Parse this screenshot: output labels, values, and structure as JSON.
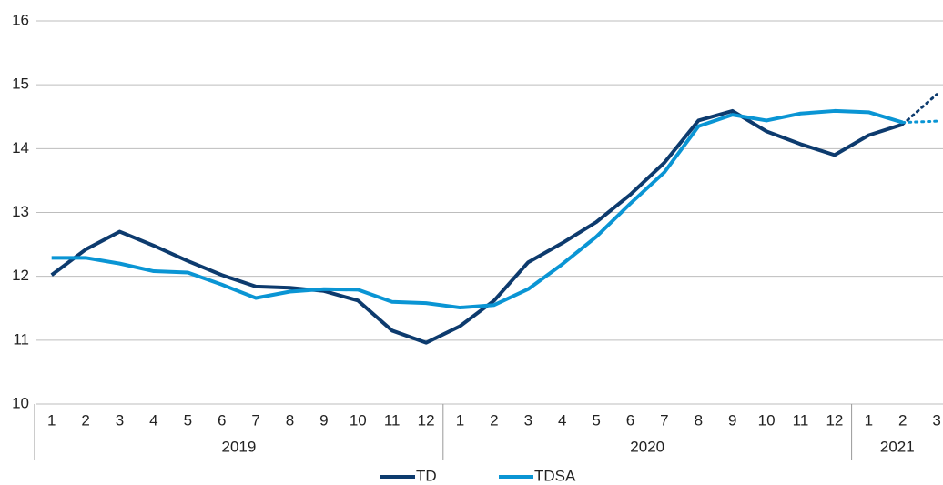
{
  "chart_data": {
    "type": "line",
    "groups": [
      {
        "name": "2019",
        "categories": [
          "1",
          "2",
          "3",
          "4",
          "5",
          "6",
          "7",
          "8",
          "9",
          "10",
          "11",
          "12"
        ]
      },
      {
        "name": "2020",
        "categories": [
          "1",
          "2",
          "3",
          "4",
          "5",
          "6",
          "7",
          "8",
          "9",
          "10",
          "11",
          "12"
        ]
      },
      {
        "name": "2021",
        "categories": [
          "1",
          "2",
          "3"
        ]
      }
    ],
    "series": [
      {
        "name": "TD",
        "color": "#0d3b6e",
        "values": [
          12.02,
          12.42,
          12.7,
          12.48,
          12.24,
          12.02,
          11.84,
          11.82,
          11.77,
          11.62,
          11.15,
          10.96,
          11.22,
          11.62,
          12.22,
          12.52,
          12.85,
          13.28,
          13.78,
          14.44,
          14.59,
          14.27,
          14.07,
          13.9,
          14.21,
          14.38,
          14.85
        ]
      },
      {
        "name": "TDSA",
        "color": "#0a95d4",
        "values": [
          12.29,
          12.29,
          12.2,
          12.08,
          12.06,
          11.87,
          11.66,
          11.76,
          11.8,
          11.79,
          11.6,
          11.58,
          11.51,
          11.55,
          11.8,
          12.19,
          12.62,
          13.14,
          13.63,
          14.35,
          14.53,
          14.44,
          14.55,
          14.59,
          14.57,
          14.41,
          14.43
        ]
      }
    ],
    "dotted_last": true,
    "ylim": [
      10,
      16
    ],
    "yticks": [
      10,
      11,
      12,
      13,
      14,
      15,
      16
    ],
    "grid": true
  }
}
